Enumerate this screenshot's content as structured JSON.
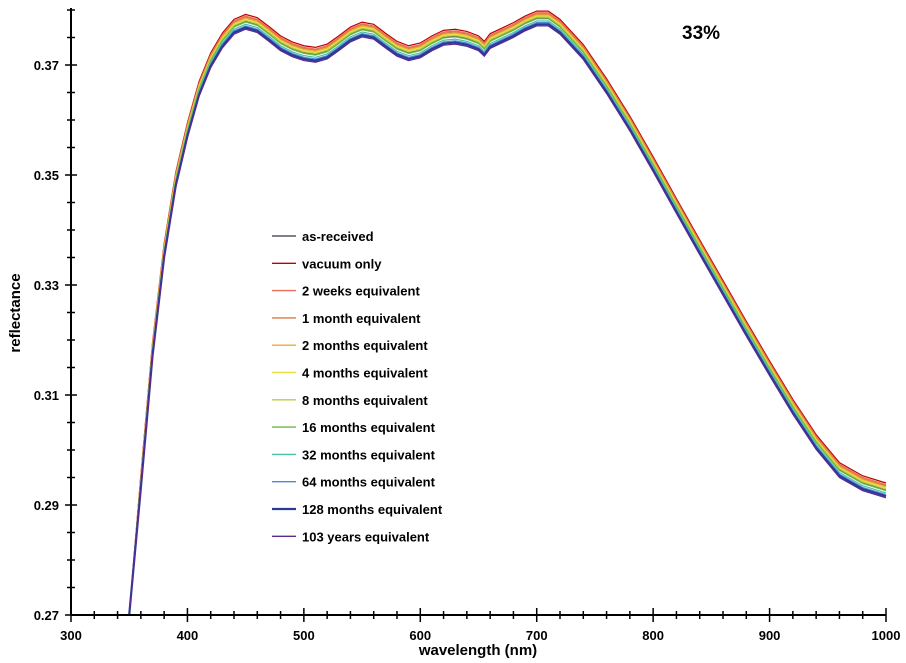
{
  "chart_data": {
    "type": "line",
    "title": "",
    "annotation": "33%",
    "xlabel": "wavelength (nm)",
    "ylabel": "reflectance",
    "xlim": [
      300,
      1000
    ],
    "ylim": [
      0.27,
      0.38
    ],
    "x_ticks": [
      300,
      400,
      500,
      600,
      700,
      800,
      900,
      1000
    ],
    "x_tick_labels": [
      "300",
      "400",
      "500",
      "600",
      "700",
      "800",
      "900",
      "1000"
    ],
    "y_ticks": [
      0.27,
      0.29,
      0.31,
      0.33,
      0.35,
      0.37
    ],
    "y_tick_labels": [
      "0.27",
      "0.29",
      "0.31",
      "0.33",
      "0.35",
      "0.37"
    ],
    "grid": false,
    "legend_position": "center-left",
    "x": [
      350,
      360,
      370,
      380,
      390,
      400,
      410,
      420,
      430,
      440,
      450,
      460,
      470,
      480,
      490,
      500,
      510,
      520,
      530,
      540,
      550,
      560,
      570,
      580,
      590,
      600,
      610,
      620,
      630,
      640,
      650,
      655,
      660,
      670,
      680,
      690,
      700,
      710,
      720,
      740,
      760,
      780,
      800,
      820,
      840,
      860,
      880,
      900,
      920,
      940,
      960,
      980,
      1000
    ],
    "base_curve": [
      0.27,
      0.294,
      0.318,
      0.336,
      0.349,
      0.358,
      0.3655,
      0.3707,
      0.3743,
      0.3768,
      0.3777,
      0.3771,
      0.3755,
      0.3738,
      0.3727,
      0.372,
      0.3717,
      0.3723,
      0.3738,
      0.3754,
      0.3763,
      0.3759,
      0.3743,
      0.3728,
      0.372,
      0.3725,
      0.3738,
      0.3748,
      0.375,
      0.3746,
      0.3738,
      0.3728,
      0.3742,
      0.3752,
      0.3762,
      0.3774,
      0.3783,
      0.3783,
      0.3768,
      0.3722,
      0.366,
      0.3592,
      0.3518,
      0.3442,
      0.3367,
      0.3293,
      0.3219,
      0.3147,
      0.3077,
      0.3013,
      0.2962,
      0.2938,
      0.2925
    ],
    "series": [
      {
        "name": "as-received",
        "color": "#555566",
        "offset": 0.0002
      },
      {
        "name": "vacuum only",
        "color": "#c00000",
        "offset": 0.0015
      },
      {
        "name": "2 weeks equivalent",
        "color": "#e8705a",
        "offset": 0.0012
      },
      {
        "name": "1 month equivalent",
        "color": "#d97a45",
        "offset": 0.001
      },
      {
        "name": "2 months equivalent",
        "color": "#f0a830",
        "offset": 0.0008
      },
      {
        "name": "4 months equivalent",
        "color": "#e8e040",
        "offset": 0.0006
      },
      {
        "name": "8 months equivalent",
        "color": "#b8d040",
        "offset": 0.0004
      },
      {
        "name": "16 months equivalent",
        "color": "#6cb84c",
        "offset": 0.0001
      },
      {
        "name": "32 months equivalent",
        "color": "#4cc0a8",
        "offset": -0.0003
      },
      {
        "name": "64 months equivalent",
        "color": "#4a8ad8",
        "offset": -0.0006
      },
      {
        "name": "128 months equivalent",
        "color": "#2a3a98",
        "offset": -0.0009
      },
      {
        "name": "103 years equivalent",
        "color": "#5a2a90",
        "offset": -0.0012
      }
    ]
  }
}
